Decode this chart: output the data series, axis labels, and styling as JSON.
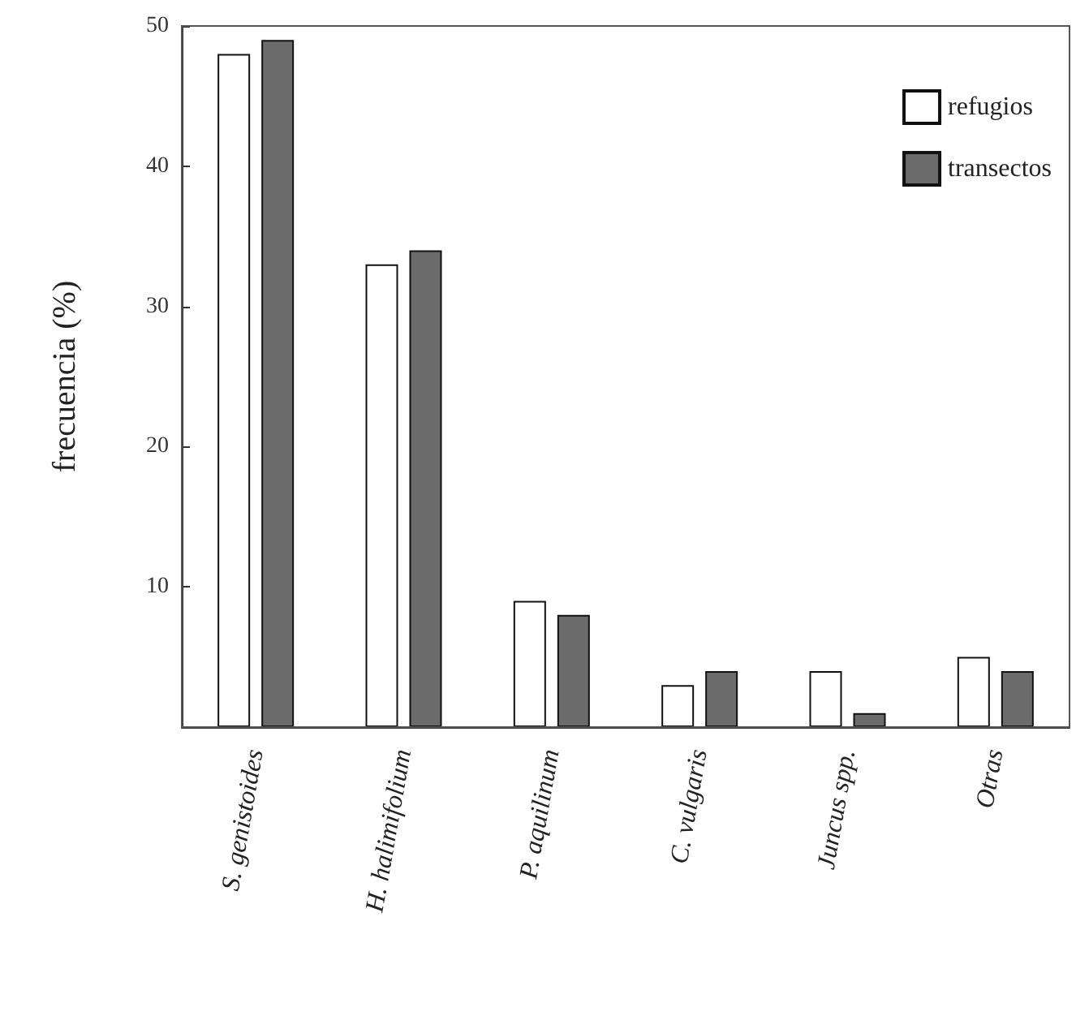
{
  "chart_data": {
    "type": "bar",
    "ylabel": "frecuencia (%)",
    "categories": [
      "S. genistoides",
      "H. halimifolium",
      "P. aquilinum",
      "C. vulgaris",
      "Juncus spp.",
      "Otras"
    ],
    "series": [
      {
        "name": "refugios",
        "color": "#ffffff",
        "values": [
          48,
          33,
          9,
          3,
          4,
          5
        ]
      },
      {
        "name": "transectos",
        "color": "#6b6b6b",
        "values": [
          49,
          34,
          8,
          4,
          1,
          4
        ]
      }
    ],
    "ylim": [
      0,
      50
    ],
    "yticks": [
      {
        "value": 0,
        "label": null
      },
      10,
      20,
      30,
      40,
      50
    ],
    "grid": false,
    "legend": "top right"
  }
}
